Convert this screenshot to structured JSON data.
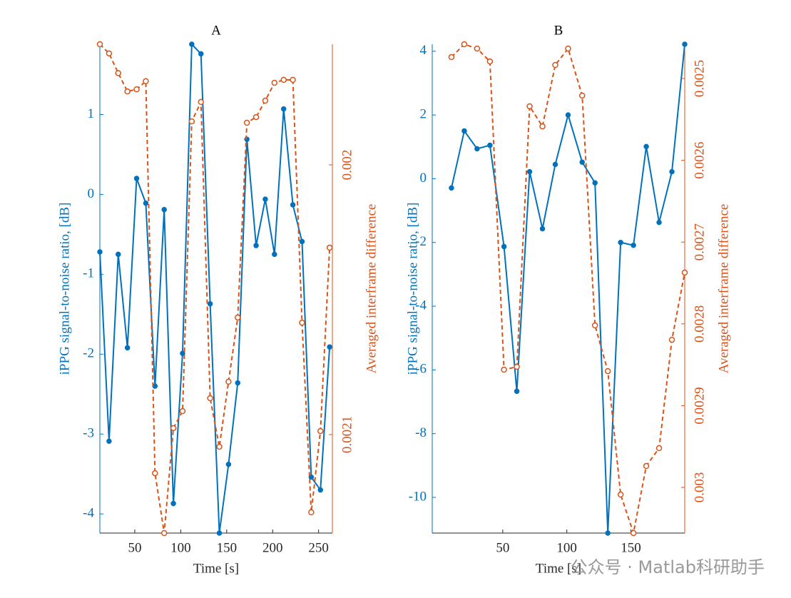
{
  "chart_data": [
    {
      "type": "line",
      "title": "A",
      "xlabel": "Time [s]",
      "ylabel": "iPPG signal-to-noise ratio, [dB]",
      "y2label": "Averaged interframe difference",
      "x": [
        12,
        22,
        32,
        42,
        52,
        62,
        72,
        82,
        92,
        102,
        112,
        122,
        132,
        142,
        152,
        162,
        172,
        182,
        192,
        202,
        212,
        222,
        232,
        242,
        252,
        262
      ],
      "series": [
        {
          "name": "iPPG signal-to-noise ratio",
          "color": "#0072bd",
          "line_style": "solid",
          "marker": "filled-dot",
          "values": [
            -0.72,
            -3.09,
            -0.75,
            -1.92,
            0.2,
            -0.11,
            -2.4,
            -0.19,
            -3.87,
            -1.99,
            1.88,
            1.76,
            -1.37,
            -4.24,
            -3.38,
            -2.36,
            0.69,
            -0.64,
            -0.06,
            -0.75,
            1.07,
            -0.13,
            -0.59,
            -3.54,
            -3.7,
            -1.91
          ]
        },
        {
          "name": "Averaged interframe difference",
          "color": "#d95319",
          "line_style": "dashed",
          "marker": "open-circle",
          "axis": "y2",
          "values": [
            0.0019553,
            0.0019587,
            0.001966,
            0.0019728,
            0.001972,
            0.001969,
            0.0021143,
            0.0021365,
            0.0020976,
            0.0020913,
            0.0019839,
            0.0019767,
            0.0020865,
            0.0021045,
            0.0020804,
            0.0020566,
            0.0019844,
            0.0019823,
            0.0019762,
            0.0019696,
            0.0019685,
            0.0019685,
            0.0020585,
            0.0021288,
            0.0020987,
            0.0020307
          ]
        }
      ],
      "xlim": [
        12,
        265
      ],
      "xticks": [
        50,
        100,
        150,
        200,
        250
      ],
      "ylim": [
        -4.24,
        1.88
      ],
      "yticks": [
        -4,
        -3,
        -2,
        -1,
        0,
        1
      ],
      "y2lim": [
        0.0019553,
        0.0021365
      ],
      "y2ticks": [
        0.002,
        0.0021
      ],
      "y2_reversed": true
    },
    {
      "type": "line",
      "title": "B",
      "xlabel": "Time [s]",
      "ylabel": "iPPG signal-to-noise ratio, [dB]",
      "y2label": "Averaged interframe difference",
      "x": [
        10,
        20,
        30,
        40,
        51,
        61,
        71,
        81,
        91,
        101,
        112,
        122,
        132,
        142,
        152,
        162,
        172,
        182,
        192
      ],
      "series": [
        {
          "name": "iPPG signal-to-noise ratio",
          "color": "#0072bd",
          "line_style": "solid",
          "marker": "filled-dot",
          "values": [
            -0.29,
            1.5,
            0.94,
            1.05,
            -2.13,
            -6.67,
            0.22,
            -1.57,
            0.45,
            2.0,
            0.52,
            -0.13,
            -11.12,
            -2.0,
            -2.09,
            1.01,
            -1.37,
            0.22,
            4.22
          ]
        },
        {
          "name": "Averaged interframe difference",
          "color": "#d95319",
          "line_style": "dashed",
          "marker": "open-circle",
          "axis": "y2",
          "values": [
            0.0024738,
            0.0024581,
            0.0024634,
            0.0024791,
            0.002856,
            0.0028525,
            0.002534,
            0.0025585,
            0.0024834,
            0.0024634,
            0.0025209,
            0.0028019,
            0.0028578,
            0.0030087,
            0.0030558,
            0.0029738,
            0.002952,
            0.0028194,
            0.0027373
          ]
        }
      ],
      "xlim": [
        -5,
        192
      ],
      "xticks": [
        50,
        100,
        150
      ],
      "ylim": [
        -11.12,
        4.22
      ],
      "yticks": [
        -10,
        -8,
        -6,
        -4,
        -2,
        0,
        2,
        4
      ],
      "y2lim": [
        0.0024581,
        0.0030558
      ],
      "y2ticks": [
        0.0025,
        0.0026,
        0.0027,
        0.0028,
        0.0029,
        0.003
      ],
      "y2_reversed": true
    }
  ],
  "watermark": "公众号 · Matlab科研助手"
}
